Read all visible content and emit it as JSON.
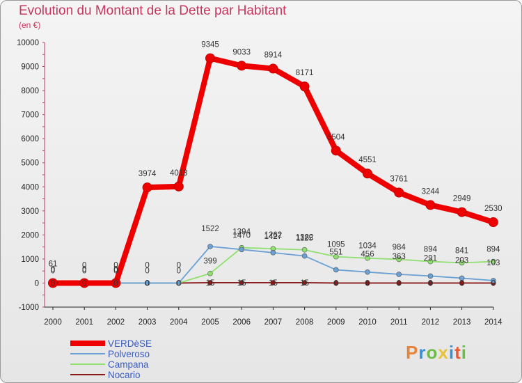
{
  "header": {
    "title": "Evolution du Montant de la Dette par Habitant",
    "subtitle": "(en €)"
  },
  "logo": {
    "text": "Proxiti",
    "colors": [
      "#e8833a",
      "#3a8fd0",
      "#6cbd45",
      "#e8c33a",
      "#3a8fd0",
      "#e85a3a",
      "#6cbd45"
    ]
  },
  "chart_data": {
    "type": "line",
    "title": "Evolution du Montant de la Dette par Habitant",
    "subtitle": "(en €)",
    "x": [
      "2000",
      "2001",
      "2002",
      "2003",
      "2004",
      "2005",
      "2006",
      "2007",
      "2008",
      "2009",
      "2010",
      "2011",
      "2012",
      "2013",
      "2014"
    ],
    "ylim": [
      -1000,
      10000
    ],
    "yticks": [
      -1000,
      0,
      1000,
      2000,
      3000,
      4000,
      5000,
      6000,
      7000,
      8000,
      9000,
      10000
    ],
    "grid": false,
    "legend": "bottom-left",
    "series": [
      {
        "name": "VERDèSE",
        "color": "#ee0000",
        "values": [
          0,
          0,
          0,
          3974,
          4013,
          9345,
          9033,
          8914,
          8171,
          5504,
          4551,
          3761,
          3244,
          2949,
          2530
        ]
      },
      {
        "name": "Polveroso",
        "color": "#6aa0d4",
        "values": [
          61,
          0,
          0,
          0,
          0,
          1522,
          1394,
          1262,
          1125,
          551,
          456,
          363,
          291,
          203,
          103
        ]
      },
      {
        "name": "Campana",
        "color": "#90e070",
        "values": [
          0,
          0,
          0,
          0,
          0,
          399,
          1470,
          1427,
          1382,
          1095,
          1034,
          984,
          894,
          841,
          894
        ]
      },
      {
        "name": "Nocario",
        "color": "#8a1a1a",
        "values": [
          0,
          0,
          0,
          0,
          0,
          15,
          15,
          15,
          15,
          0,
          0,
          0,
          0,
          0,
          0
        ]
      }
    ]
  }
}
